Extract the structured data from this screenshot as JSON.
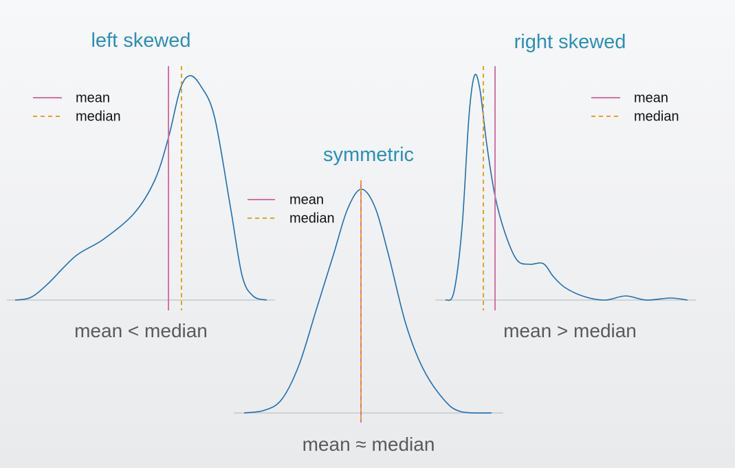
{
  "panels": [
    {
      "title": "left skewed",
      "legend": {
        "mean": "mean",
        "median": "median"
      },
      "caption": "mean < median"
    },
    {
      "title": "symmetric",
      "legend": {
        "mean": "mean",
        "median": "median"
      },
      "caption": "mean ≈ median"
    },
    {
      "title": "right skewed",
      "legend": {
        "mean": "mean",
        "median": "median"
      },
      "caption": "mean > median"
    }
  ]
}
